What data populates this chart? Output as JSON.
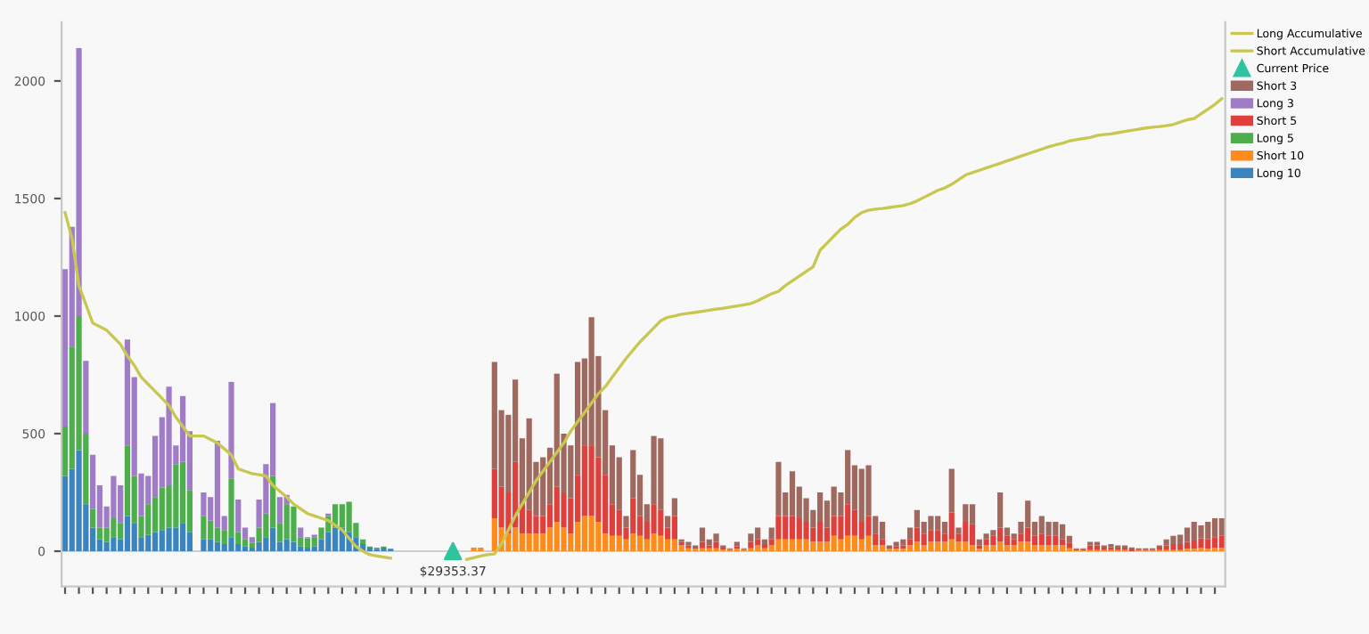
{
  "chart_data": {
    "type": "bar",
    "stacked": true,
    "legend": "top right",
    "tick_labels": "y",
    "ylim": [
      -150,
      2250
    ],
    "yticks": [
      0,
      500,
      1000,
      1500,
      2000
    ],
    "annotations": [
      "$29353.37"
    ],
    "categories": [
      null,
      null,
      null,
      null,
      null,
      null,
      null,
      null,
      null,
      null,
      null,
      null,
      null,
      null,
      null,
      null,
      null,
      null,
      null,
      null,
      null,
      null,
      null,
      null,
      null,
      null,
      null,
      null,
      null,
      null,
      null,
      null,
      null,
      null,
      null,
      null,
      null,
      null,
      null,
      null,
      null,
      null,
      null,
      null,
      null,
      null,
      null,
      null,
      null,
      null,
      null,
      null,
      null,
      null,
      null,
      null,
      null,
      null,
      null,
      null,
      null,
      null,
      null,
      null,
      null,
      null,
      null,
      null,
      null,
      null,
      null,
      null,
      null,
      null,
      null,
      null,
      null,
      null,
      null,
      null,
      null,
      null,
      null,
      null,
      null,
      null,
      null,
      null,
      null,
      null,
      null,
      null,
      null,
      null,
      null,
      null,
      null,
      null,
      null,
      null,
      null,
      null,
      null,
      null,
      null,
      null,
      null,
      null,
      null,
      null,
      null,
      null,
      null,
      null,
      null,
      null,
      null,
      null,
      null,
      null,
      null,
      null,
      null,
      null,
      null,
      null,
      null,
      null,
      null,
      null,
      null,
      null,
      null,
      null,
      null,
      null,
      null,
      null,
      null,
      null,
      null,
      null,
      null,
      null,
      null,
      null,
      null,
      null,
      null,
      null,
      null,
      null,
      null,
      null,
      null,
      null,
      null,
      null,
      null,
      null,
      null,
      null,
      null,
      null,
      null,
      null,
      null,
      null
    ],
    "series": [
      {
        "name": "Long Accumulative",
        "type": "line",
        "color": "#c8c850",
        "values": [
          1440,
          1330,
          1130,
          1050,
          970,
          955,
          940,
          910,
          880,
          830,
          790,
          740,
          710,
          680,
          650,
          620,
          570,
          530,
          490,
          490,
          490,
          475,
          460,
          435,
          410,
          350,
          340,
          330,
          325,
          320,
          280,
          255,
          230,
          200,
          180,
          160,
          150,
          140,
          130,
          110,
          90,
          55,
          20,
          0,
          -15,
          -20,
          -25,
          -30,
          null,
          null,
          null,
          null,
          null,
          null,
          null,
          null,
          null,
          null,
          null,
          null,
          null,
          null,
          null,
          null,
          null,
          null,
          null,
          null,
          null,
          null,
          null,
          null,
          null,
          null,
          null,
          null,
          null,
          null,
          null,
          null,
          null,
          null,
          null,
          null,
          null,
          null,
          null,
          null,
          null,
          null,
          null,
          null,
          null,
          null,
          null,
          null,
          null,
          null,
          null,
          null,
          null,
          null,
          null,
          null,
          null,
          null,
          null,
          null,
          null,
          null,
          null,
          null,
          null,
          null,
          null,
          null,
          null,
          null,
          null,
          null,
          null,
          null,
          null,
          null,
          null,
          null,
          null,
          null,
          null,
          null,
          null,
          null,
          null,
          null,
          null,
          null,
          null,
          null,
          null,
          null,
          null,
          null,
          null,
          null,
          null,
          null,
          null,
          null,
          null,
          null,
          null,
          null,
          null,
          null,
          null,
          null,
          null,
          null,
          null,
          null,
          null,
          null,
          null,
          null,
          null,
          null,
          null,
          null
        ]
      },
      {
        "name": "Short Accumulative",
        "type": "line",
        "color": "#c8c850",
        "values": [
          null,
          null,
          null,
          null,
          null,
          null,
          null,
          null,
          null,
          null,
          null,
          null,
          null,
          null,
          null,
          null,
          null,
          null,
          null,
          null,
          null,
          null,
          null,
          null,
          null,
          null,
          null,
          null,
          null,
          null,
          null,
          null,
          null,
          null,
          null,
          null,
          null,
          null,
          null,
          null,
          null,
          null,
          null,
          null,
          null,
          null,
          null,
          null,
          null,
          null,
          null,
          null,
          null,
          null,
          null,
          null,
          null,
          null,
          -35,
          -28,
          -20,
          -15,
          -12,
          30,
          90,
          150,
          200,
          250,
          300,
          340,
          380,
          420,
          460,
          510,
          550,
          590,
          630,
          670,
          700,
          740,
          780,
          820,
          855,
          890,
          920,
          950,
          980,
          995,
          1000,
          1008,
          1012,
          1016,
          1020,
          1025,
          1030,
          1033,
          1038,
          1043,
          1048,
          1053,
          1065,
          1080,
          1095,
          1105,
          1130,
          1150,
          1170,
          1190,
          1210,
          1280,
          1310,
          1340,
          1370,
          1390,
          1420,
          1440,
          1450,
          1455,
          1458,
          1462,
          1466,
          1470,
          1478,
          1490,
          1505,
          1520,
          1535,
          1545,
          1560,
          1580,
          1600,
          1610,
          1620,
          1630,
          1640,
          1650,
          1660,
          1670,
          1680,
          1690,
          1700,
          1710,
          1720,
          1728,
          1735,
          1745,
          1750,
          1755,
          1760,
          1768,
          1772,
          1775,
          1780,
          1785,
          1790,
          1795,
          1800,
          1803,
          1806,
          1810,
          1815,
          1825,
          1835,
          1840,
          1860,
          1880,
          1900,
          1925
        ]
      },
      {
        "name": "Current Price",
        "type": "scatter",
        "marker": "triangle",
        "color": "#2ec4a0",
        "values": [
          null,
          null,
          null,
          null,
          null,
          null,
          null,
          null,
          null,
          null,
          null,
          null,
          null,
          null,
          null,
          null,
          null,
          null,
          null,
          null,
          null,
          null,
          null,
          null,
          null,
          null,
          null,
          null,
          null,
          null,
          null,
          null,
          null,
          null,
          null,
          null,
          null,
          null,
          null,
          null,
          null,
          null,
          null,
          null,
          null,
          null,
          null,
          null,
          null,
          null,
          null,
          null,
          null,
          null,
          null,
          null,
          0,
          null,
          null,
          null,
          null,
          null,
          null,
          null,
          null,
          null,
          null,
          null,
          null,
          null,
          null,
          null,
          null,
          null,
          null,
          null,
          null,
          null,
          null,
          null,
          null,
          null,
          null,
          null,
          null,
          null,
          null,
          null,
          null,
          null,
          null,
          null,
          null,
          null,
          null,
          null,
          null,
          null,
          null,
          null,
          null,
          null,
          null,
          null,
          null,
          null,
          null,
          null,
          null,
          null,
          null,
          null,
          null,
          null,
          null,
          null,
          null,
          null,
          null,
          null,
          null,
          null,
          null,
          null,
          null,
          null,
          null,
          null,
          null,
          null,
          null,
          null,
          null,
          null,
          null,
          null,
          null,
          null,
          null,
          null,
          null,
          null,
          null,
          null,
          null,
          null,
          null,
          null,
          null,
          null,
          null,
          null,
          null,
          null,
          null,
          null,
          null,
          null,
          null,
          null,
          null,
          null,
          null,
          null,
          null,
          null,
          null,
          null
        ]
      },
      {
        "name": "Long 10",
        "color": "#3a84c0",
        "values": [
          320,
          350,
          430,
          200,
          100,
          50,
          40,
          60,
          50,
          150,
          120,
          60,
          70,
          80,
          90,
          100,
          100,
          120,
          80,
          null,
          50,
          50,
          40,
          30,
          60,
          30,
          20,
          15,
          40,
          60,
          100,
          40,
          50,
          40,
          20,
          15,
          20,
          50,
          80,
          100,
          100,
          80,
          60,
          30,
          15,
          10,
          15,
          10,
          null,
          null,
          null,
          null,
          null,
          null,
          null,
          null,
          null,
          null,
          null,
          null,
          null,
          null,
          null,
          null,
          null,
          null,
          null,
          null,
          null,
          null,
          null,
          null,
          null,
          null,
          null,
          null,
          null,
          null,
          null,
          null,
          null,
          null,
          null,
          null,
          null,
          null,
          null,
          null,
          null,
          null,
          null,
          null,
          null,
          null,
          null,
          null,
          null,
          null,
          null,
          null,
          null,
          null,
          null,
          null,
          null,
          null,
          null,
          null,
          null,
          null,
          null,
          null,
          null,
          null,
          null,
          null,
          null,
          null,
          null,
          null,
          null,
          null,
          null,
          null,
          null,
          null,
          null,
          null,
          null,
          null,
          null,
          null,
          null,
          null,
          null,
          null,
          null,
          null,
          null,
          null,
          null,
          null,
          null,
          null,
          null,
          null,
          null,
          null,
          null,
          null,
          null,
          null,
          null,
          null,
          null,
          null,
          null,
          null,
          null,
          null,
          null,
          null,
          null,
          null,
          null,
          null,
          null,
          null
        ]
      },
      {
        "name": "Short 10",
        "color": "#ff8c1a",
        "values": [
          null,
          null,
          null,
          null,
          null,
          null,
          null,
          null,
          null,
          null,
          null,
          null,
          null,
          null,
          null,
          null,
          null,
          null,
          null,
          null,
          null,
          null,
          null,
          null,
          null,
          null,
          null,
          null,
          null,
          null,
          null,
          null,
          null,
          null,
          null,
          null,
          null,
          null,
          null,
          null,
          null,
          null,
          null,
          null,
          null,
          null,
          null,
          null,
          null,
          null,
          null,
          null,
          null,
          null,
          null,
          null,
          null,
          null,
          null,
          15,
          15,
          null,
          140,
          100,
          75,
          100,
          75,
          75,
          75,
          75,
          100,
          125,
          100,
          75,
          125,
          150,
          150,
          125,
          75,
          65,
          65,
          50,
          75,
          65,
          50,
          75,
          65,
          50,
          50,
          25,
          12,
          10,
          12,
          12,
          12,
          8,
          5,
          10,
          5,
          12,
          25,
          12,
          25,
          50,
          50,
          50,
          50,
          50,
          40,
          40,
          40,
          65,
          50,
          65,
          65,
          50,
          65,
          25,
          25,
          10,
          10,
          10,
          25,
          40,
          25,
          40,
          40,
          40,
          50,
          40,
          40,
          25,
          10,
          25,
          25,
          40,
          25,
          25,
          40,
          40,
          25,
          25,
          25,
          25,
          25,
          12,
          4,
          4,
          5,
          5,
          5,
          5,
          5,
          5,
          null,
          3,
          3,
          3,
          5,
          5,
          5,
          5,
          10,
          10,
          15,
          10,
          15,
          15
        ]
      },
      {
        "name": "Long 5",
        "color": "#4caf4c",
        "values": [
          210,
          520,
          570,
          300,
          80,
          50,
          60,
          80,
          70,
          300,
          200,
          90,
          130,
          150,
          180,
          180,
          270,
          260,
          180,
          null,
          100,
          80,
          60,
          60,
          250,
          50,
          30,
          20,
          60,
          100,
          220,
          80,
          150,
          150,
          40,
          40,
          40,
          50,
          70,
          100,
          100,
          130,
          60,
          20,
          5,
          5,
          5,
          0,
          null,
          null,
          null,
          null,
          null,
          null,
          null,
          null,
          null,
          null,
          null,
          null,
          null,
          null,
          null,
          null,
          null,
          null,
          null,
          null,
          null,
          null,
          null,
          null,
          null,
          null,
          null,
          null,
          null,
          null,
          null,
          null,
          null,
          null,
          null,
          null,
          null,
          null,
          null,
          null,
          null,
          null,
          null,
          null,
          null,
          null,
          null,
          null,
          null,
          null,
          null,
          null,
          null,
          null,
          null,
          null,
          null,
          null,
          null,
          null,
          null,
          null,
          null,
          null,
          null,
          null,
          null,
          null,
          null,
          null,
          null,
          null,
          null,
          null,
          null,
          null,
          null,
          null,
          null,
          null,
          null,
          null,
          null,
          null,
          null,
          null,
          null,
          null,
          null,
          null,
          null,
          null,
          null,
          null,
          null,
          null,
          null,
          null,
          null,
          null,
          null,
          null,
          null,
          null,
          null,
          null,
          null,
          null,
          null,
          null,
          null,
          null,
          null,
          null,
          null,
          null,
          null,
          null,
          null,
          null
        ]
      },
      {
        "name": "Short 5",
        "color": "#e0403c",
        "values": [
          null,
          null,
          null,
          null,
          null,
          null,
          null,
          null,
          null,
          null,
          null,
          null,
          null,
          null,
          null,
          null,
          null,
          null,
          null,
          null,
          null,
          null,
          null,
          null,
          null,
          null,
          null,
          null,
          null,
          null,
          null,
          null,
          null,
          null,
          null,
          null,
          null,
          null,
          null,
          null,
          null,
          null,
          null,
          null,
          null,
          null,
          null,
          null,
          null,
          null,
          null,
          null,
          null,
          null,
          null,
          null,
          null,
          null,
          null,
          null,
          null,
          null,
          210,
          175,
          175,
          280,
          125,
          100,
          75,
          75,
          100,
          150,
          150,
          150,
          200,
          300,
          300,
          275,
          250,
          135,
          110,
          50,
          150,
          85,
          75,
          125,
          110,
          50,
          100,
          15,
          13,
          5,
          28,
          13,
          28,
          7,
          4,
          10,
          4,
          28,
          25,
          18,
          25,
          100,
          100,
          100,
          90,
          75,
          60,
          85,
          60,
          85,
          100,
          135,
          110,
          75,
          85,
          50,
          25,
          5,
          10,
          15,
          25,
          60,
          50,
          50,
          50,
          35,
          115,
          35,
          85,
          90,
          15,
          25,
          40,
          60,
          40,
          25,
          35,
          60,
          40,
          50,
          40,
          40,
          25,
          25,
          5,
          5,
          20,
          20,
          10,
          12,
          10,
          10,
          8,
          4,
          4,
          4,
          10,
          20,
          25,
          25,
          30,
          35,
          40,
          40,
          45,
          50
        ]
      },
      {
        "name": "Long 3",
        "color": "#a07cc8",
        "values": [
          670,
          510,
          1140,
          310,
          230,
          180,
          90,
          180,
          160,
          450,
          420,
          180,
          120,
          260,
          300,
          420,
          80,
          280,
          250,
          null,
          100,
          100,
          370,
          60,
          410,
          140,
          50,
          25,
          120,
          210,
          310,
          110,
          40,
          null,
          40,
          5,
          10,
          0,
          10,
          0,
          0,
          0,
          0,
          0,
          0,
          0,
          0,
          0,
          null,
          null,
          null,
          null,
          null,
          null,
          null,
          null,
          null,
          null,
          null,
          null,
          null,
          null,
          null,
          null,
          null,
          null,
          null,
          null,
          null,
          null,
          null,
          null,
          null,
          null,
          null,
          null,
          null,
          null,
          null,
          null,
          null,
          null,
          null,
          null,
          null,
          null,
          null,
          null,
          null,
          null,
          null,
          null,
          null,
          null,
          null,
          null,
          null,
          null,
          null,
          null,
          null,
          null,
          null,
          null,
          null,
          null,
          null,
          null,
          null,
          null,
          null,
          null,
          null,
          null,
          null,
          null,
          null,
          null,
          null,
          null,
          null,
          null,
          null,
          null,
          null,
          null,
          null,
          null,
          null,
          null,
          null,
          null,
          null,
          null,
          null,
          null,
          null,
          null,
          null,
          null,
          null,
          null,
          null,
          null,
          null,
          null,
          null,
          null,
          null,
          null,
          null,
          null,
          null,
          null,
          null,
          null,
          null,
          null,
          null,
          null,
          null,
          null,
          null,
          null,
          null,
          null,
          null,
          null
        ]
      },
      {
        "name": "Short 3",
        "color": "#a0695f",
        "values": [
          null,
          null,
          null,
          null,
          null,
          null,
          null,
          null,
          null,
          null,
          null,
          null,
          null,
          null,
          null,
          null,
          null,
          null,
          null,
          null,
          null,
          null,
          null,
          null,
          null,
          null,
          null,
          null,
          null,
          null,
          null,
          null,
          null,
          null,
          null,
          null,
          null,
          null,
          null,
          null,
          null,
          null,
          null,
          null,
          null,
          null,
          null,
          null,
          null,
          null,
          null,
          null,
          null,
          null,
          null,
          null,
          null,
          null,
          null,
          null,
          null,
          null,
          455,
          325,
          330,
          350,
          280,
          390,
          230,
          250,
          240,
          480,
          250,
          225,
          480,
          370,
          545,
          430,
          275,
          250,
          225,
          50,
          205,
          175,
          75,
          290,
          305,
          50,
          75,
          10,
          15,
          10,
          60,
          25,
          35,
          10,
          3,
          20,
          3,
          35,
          50,
          20,
          50,
          230,
          100,
          190,
          135,
          100,
          75,
          125,
          115,
          125,
          100,
          230,
          190,
          225,
          215,
          75,
          75,
          10,
          20,
          25,
          50,
          75,
          50,
          60,
          60,
          50,
          185,
          25,
          75,
          85,
          25,
          25,
          25,
          150,
          35,
          25,
          50,
          115,
          60,
          75,
          60,
          60,
          65,
          28,
          3,
          3,
          15,
          15,
          10,
          13,
          10,
          10,
          8,
          5,
          5,
          5,
          10,
          25,
          35,
          40,
          60,
          80,
          55,
          75,
          80,
          75
        ]
      }
    ]
  }
}
